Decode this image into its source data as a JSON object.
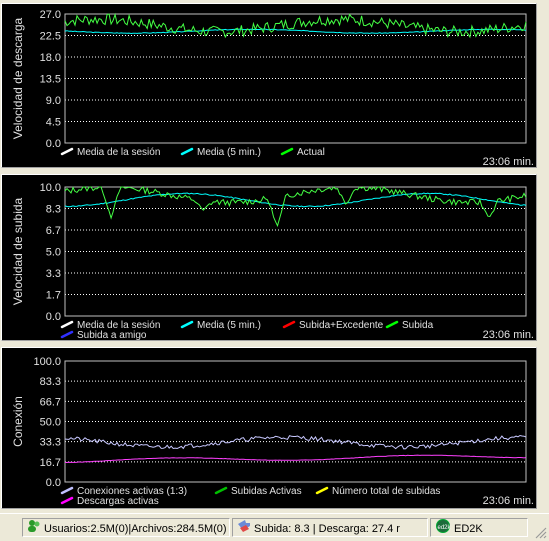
{
  "graphs": [
    {
      "id": "download",
      "ylabel": "Velocidad de descarga",
      "ticks": [
        "27.0",
        "22.5",
        "18.0",
        "13.5",
        "9.0",
        "4.5",
        "0.0"
      ],
      "ymax": 27.0,
      "time": "23:06 min.",
      "legend": [
        {
          "label": "Media de la sesión",
          "color": "#ffffff"
        },
        {
          "label": "Media (5 min.)",
          "color": "#00ffff"
        },
        {
          "label": "Actual",
          "color": "#00ff00"
        }
      ],
      "series": [
        {
          "name": "Media (5 min.)",
          "color": "#00ffff",
          "base": 23.4,
          "amp": 0.4,
          "noise": 0.15,
          "seed": 3
        },
        {
          "name": "Actual",
          "color": "#44ff44",
          "base": 24.6,
          "amp": 1.3,
          "noise": 2.4,
          "seed": 7
        }
      ]
    },
    {
      "id": "upload",
      "ylabel": "Velocidad de subida",
      "ticks": [
        "10.0",
        "8.3",
        "6.7",
        "5.0",
        "3.3",
        "1.7",
        "0.0"
      ],
      "ymax": 10.0,
      "time": "23:06 min.",
      "legend": [
        {
          "label": "Media de la sesión",
          "color": "#ffffff"
        },
        {
          "label": "Media (5 min.)",
          "color": "#00ffff"
        },
        {
          "label": "Subida+Excedente",
          "color": "#ff0000"
        },
        {
          "label": "Subida",
          "color": "#00ff00"
        },
        {
          "label": "Subida a amigo",
          "color": "#3030ff"
        }
      ],
      "series": [
        {
          "name": "Media (5 min.)",
          "color": "#00ffff",
          "base": 9.0,
          "amp": 0.5,
          "noise": 0.08,
          "seed": 11
        },
        {
          "name": "Subida",
          "color": "#44ff44",
          "base": 9.4,
          "amp": 0.6,
          "noise": 0.5,
          "seed": 13,
          "dips": [
            [
              0.1,
              7.6
            ],
            [
              0.3,
              8.2
            ],
            [
              0.46,
              6.9
            ],
            [
              0.61,
              8.6
            ],
            [
              0.92,
              7.6
            ]
          ]
        }
      ]
    },
    {
      "id": "connections",
      "ylabel": "Conexión",
      "ticks": [
        "100.0",
        "83.3",
        "66.7",
        "50.0",
        "33.3",
        "16.7",
        "0.0"
      ],
      "ymax": 100.0,
      "time": "23:06 min.",
      "legend": [
        {
          "label": "Conexiones activas (1:3)",
          "color": "#c0c0ff"
        },
        {
          "label": "Subidas Activas",
          "color": "#00c000"
        },
        {
          "label": "Número total de subidas",
          "color": "#ffff00"
        },
        {
          "label": "Descargas activas",
          "color": "#ff00ff"
        }
      ],
      "series": [
        {
          "name": "Conexiones activas (1:3)",
          "color": "#c8c8ff",
          "base": 33,
          "amp": 4,
          "noise": 3.5,
          "seed": 21
        },
        {
          "name": "Descargas activas",
          "color": "#ff40ff",
          "base": 17.5,
          "amp": 1.5,
          "noise": 0.3,
          "seed": 5,
          "trend": 4
        }
      ]
    }
  ],
  "status": {
    "users": "Usuarios:2.5M(0)|Archivos:284.5M(0)",
    "rates": "Subida: 8.3 | Descarga: 27.4 r",
    "network": "ED2K"
  }
}
